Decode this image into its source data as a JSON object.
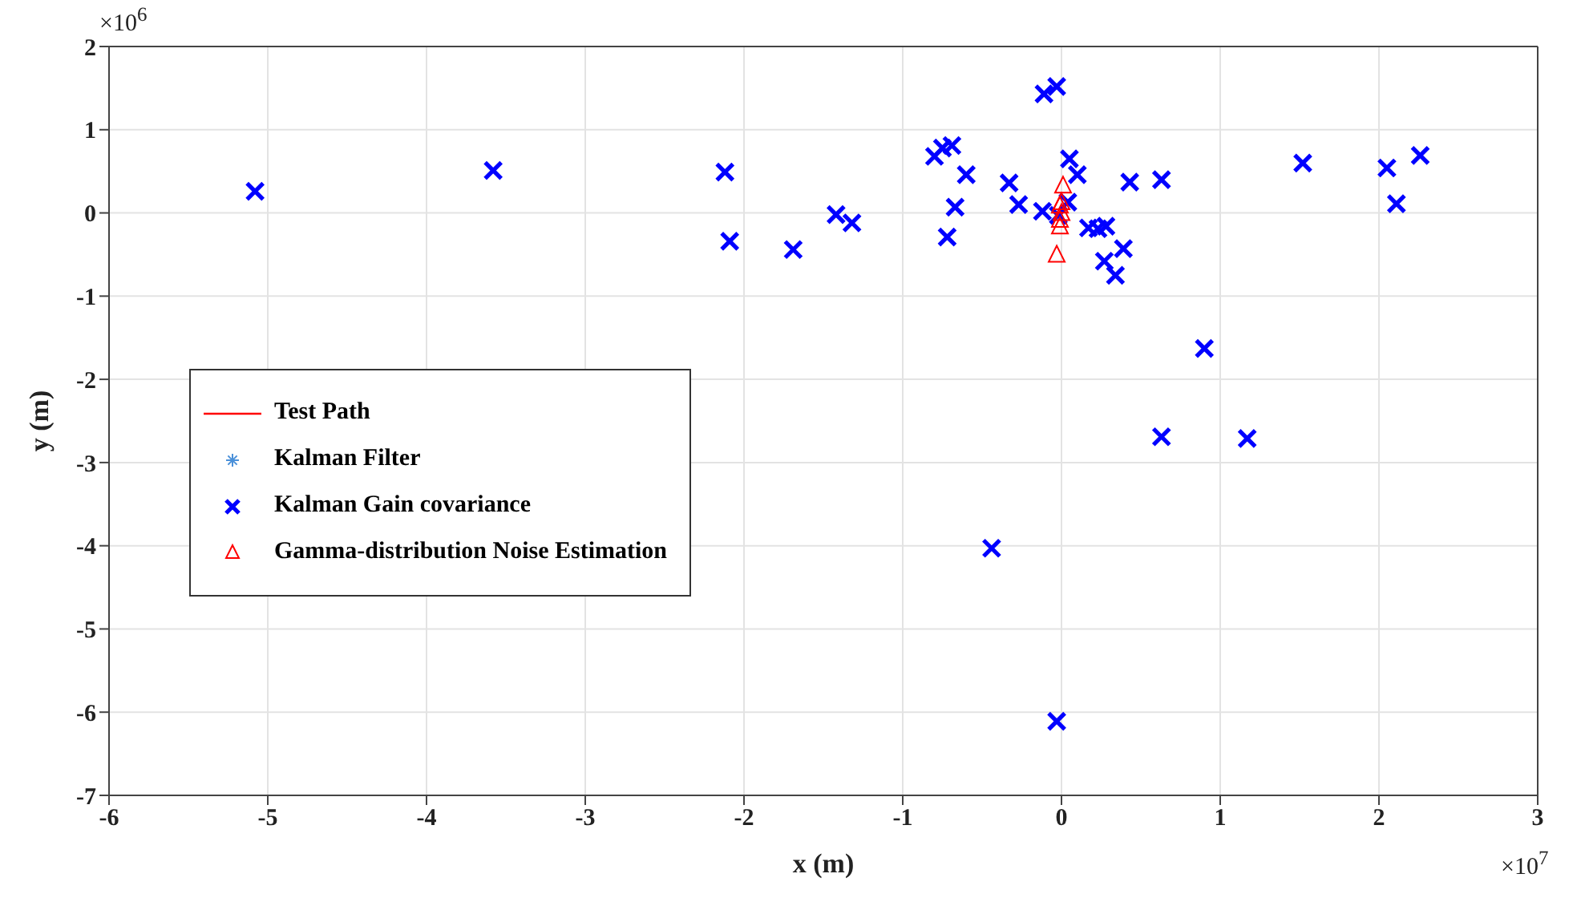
{
  "chart_data": {
    "type": "scatter",
    "xlabel": "x (m)",
    "ylabel": "y (m)",
    "xlim": [
      -6,
      3
    ],
    "xticks": [
      -6,
      -5,
      -4,
      -3,
      -2,
      -1,
      0,
      1,
      2,
      3
    ],
    "ylim": [
      -7,
      2
    ],
    "yticks": [
      -7,
      -6,
      -5,
      -4,
      -3,
      -2,
      -1,
      0,
      1,
      2
    ],
    "grid": true,
    "legend": "left",
    "annotations": [
      "×10$^{6}$",
      "×10$^{7}$"
    ],
    "series": [
      {
        "name": "Test Path",
        "type": "line",
        "color": "#ff0000",
        "marker": "none"
      },
      {
        "name": "Kalman Filter",
        "color": "#4a90d9",
        "marker": "star"
      },
      {
        "name": "Kalman Gain covariance",
        "color": "#0000ff",
        "marker": "cross",
        "x": [
          -5.08,
          -3.58,
          -2.12,
          -2.09,
          -1.69,
          -1.42,
          -1.32,
          -0.11,
          -0.03,
          -0.8,
          -0.75,
          -0.69,
          -0.6,
          -0.67,
          -0.72,
          -0.33,
          -0.27,
          -0.12,
          0.05,
          0.1,
          0.04,
          -0.02,
          0.17,
          0.23,
          0.28,
          0.43,
          0.63,
          0.39,
          0.27,
          0.34,
          1.52,
          2.05,
          2.11,
          2.26,
          0.9,
          0.63,
          1.17,
          -0.44,
          -0.03
        ],
        "values": [
          0.26,
          0.51,
          0.49,
          -0.34,
          -0.44,
          -0.02,
          -0.12,
          1.43,
          1.52,
          0.68,
          0.78,
          0.81,
          0.46,
          0.07,
          -0.29,
          0.36,
          0.1,
          0.02,
          0.65,
          0.46,
          0.13,
          -0.03,
          -0.18,
          -0.19,
          -0.16,
          0.37,
          0.4,
          -0.43,
          -0.58,
          -0.75,
          0.6,
          0.54,
          0.11,
          0.69,
          -1.63,
          -2.69,
          -2.71,
          -4.03,
          -6.11
        ]
      },
      {
        "name": "Gamma-distribution Noise Estimation",
        "color": "#ff0000",
        "marker": "triangle",
        "x": [
          0.01,
          -0.01,
          0.0,
          0.0,
          -0.01,
          -0.01,
          -0.03
        ],
        "values": [
          0.32,
          0.08,
          0.12,
          -0.01,
          -0.09,
          -0.17,
          -0.51
        ]
      }
    ]
  }
}
